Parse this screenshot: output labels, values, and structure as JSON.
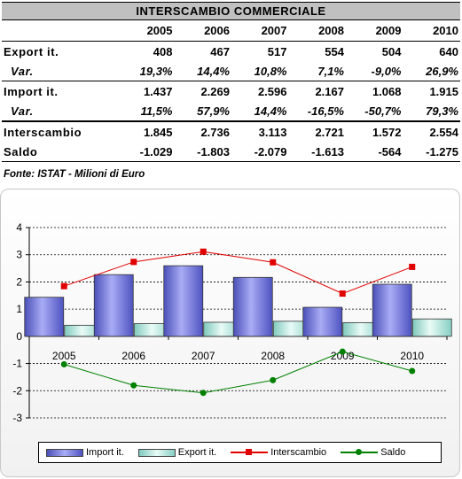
{
  "table": {
    "title": "INTERSCAMBIO COMMERCIALE",
    "years": [
      "2005",
      "2006",
      "2007",
      "2008",
      "2009",
      "2010"
    ],
    "rows": [
      {
        "label": "Export it.",
        "values": [
          "408",
          "467",
          "517",
          "554",
          "504",
          "640"
        ]
      },
      {
        "label": "Var.",
        "values": [
          "19,3%",
          "14,4%",
          "10,8%",
          "7,1%",
          "-9,0%",
          "26,9%"
        ]
      },
      {
        "label": "Import it.",
        "values": [
          "1.437",
          "2.269",
          "2.596",
          "2.167",
          "1.068",
          "1.915"
        ]
      },
      {
        "label": "Var.",
        "values": [
          "11,5%",
          "57,9%",
          "14,4%",
          "-16,5%",
          "-50,7%",
          "79,3%"
        ]
      },
      {
        "label": "Interscambio",
        "values": [
          "1.845",
          "2.736",
          "3.113",
          "2.721",
          "1.572",
          "2.554"
        ]
      },
      {
        "label": "Saldo",
        "values": [
          "-1.029",
          "-1.803",
          "-2.079",
          "-1.613",
          "-564",
          "-1.275"
        ]
      }
    ],
    "source": "Fonte: ISTAT - Milioni di Euro"
  },
  "chart_data": {
    "type": "bar",
    "categories": [
      "2005",
      "2006",
      "2007",
      "2008",
      "2009",
      "2010"
    ],
    "series": [
      {
        "name": "Import it.",
        "kind": "bar",
        "color": "#7b7fe0",
        "values": [
          1.437,
          2.269,
          2.596,
          2.167,
          1.068,
          1.915
        ]
      },
      {
        "name": "Export it.",
        "kind": "bar",
        "color": "#bfe8e0",
        "values": [
          0.408,
          0.467,
          0.517,
          0.554,
          0.504,
          0.64
        ]
      },
      {
        "name": "Interscambio",
        "kind": "line",
        "color": "#e00000",
        "values": [
          1.845,
          2.736,
          3.113,
          2.721,
          1.572,
          2.554
        ]
      },
      {
        "name": "Saldo",
        "kind": "line",
        "color": "#008000",
        "values": [
          -1.029,
          -1.803,
          -2.079,
          -1.613,
          -0.564,
          -1.275
        ]
      }
    ],
    "ylim": [
      -3,
      4
    ],
    "yticks": [
      "-3",
      "-2",
      "-1",
      "0",
      "1",
      "2",
      "3",
      "4"
    ],
    "grid": true,
    "legend": "bottom"
  }
}
